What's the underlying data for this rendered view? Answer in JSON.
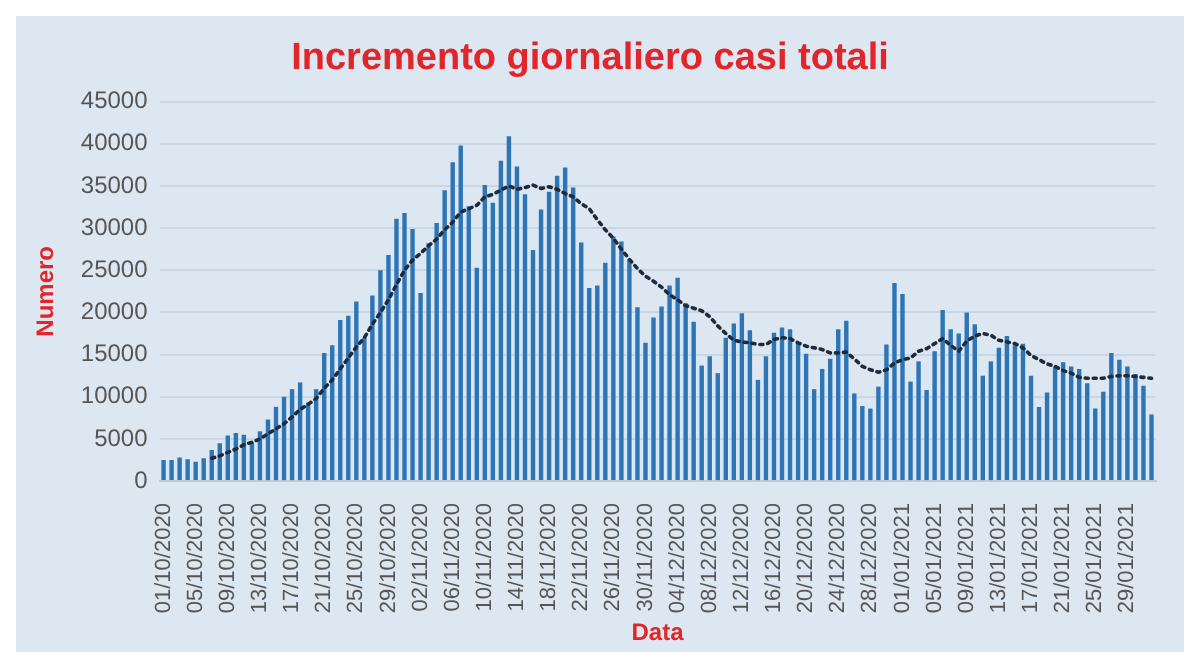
{
  "chart_data": {
    "type": "bar",
    "title": "Incremento giornaliero casi totali",
    "xlabel": "Data",
    "ylabel": "Numero",
    "categories": [
      "01/10/2020",
      null,
      null,
      null,
      "05/10/2020",
      null,
      null,
      null,
      "09/10/2020",
      null,
      null,
      null,
      "13/10/2020",
      null,
      null,
      null,
      "17/10/2020",
      null,
      null,
      null,
      "21/10/2020",
      null,
      null,
      null,
      "25/10/2020",
      null,
      null,
      null,
      "29/10/2020",
      null,
      null,
      null,
      "02/11/2020",
      null,
      null,
      null,
      "06/11/2020",
      null,
      null,
      null,
      "10/11/2020",
      null,
      null,
      null,
      "14/11/2020",
      null,
      null,
      null,
      "18/11/2020",
      null,
      null,
      null,
      "22/11/2020",
      null,
      null,
      null,
      "26/11/2020",
      null,
      null,
      null,
      "30/11/2020",
      null,
      null,
      null,
      "04/12/2020",
      null,
      null,
      null,
      "08/12/2020",
      null,
      null,
      null,
      "12/12/2020",
      null,
      null,
      null,
      "16/12/2020",
      null,
      null,
      null,
      "20/12/2020",
      null,
      null,
      null,
      "24/12/2020",
      null,
      null,
      null,
      "28/12/2020",
      null,
      null,
      null,
      "01/01/2021",
      null,
      null,
      null,
      "05/01/2021",
      null,
      null,
      null,
      "09/01/2021",
      null,
      null,
      null,
      "13/01/2021",
      null,
      null,
      null,
      "17/01/2021",
      null,
      null,
      null,
      "21/01/2021",
      null,
      null,
      null,
      "25/01/2021",
      null,
      null,
      null,
      "29/01/2021",
      null,
      null,
      null
    ],
    "series": [
      {
        "color": "#2e75b6",
        "values": [
          2500,
          2500,
          2800,
          2600,
          2300,
          2700,
          3700,
          4500,
          5400,
          5700,
          5500,
          4600,
          5900,
          7300,
          8800,
          10000,
          10900,
          11700,
          9300,
          10900,
          15200,
          16100,
          19100,
          19600,
          21300,
          17000,
          22000,
          25000,
          26800,
          31100,
          31800,
          29900,
          22300,
          28200,
          30600,
          34500,
          37800,
          39800,
          32600,
          25300,
          35100,
          33000,
          38000,
          40900,
          37300,
          34000,
          27400,
          32200,
          34300,
          36200,
          37200,
          34800,
          28300,
          22900,
          23200,
          25900,
          29000,
          28400,
          26300,
          20600,
          16400,
          19400,
          20700,
          23200,
          24100,
          21100,
          18900,
          13700,
          14800,
          12800,
          17000,
          18700,
          19900,
          17900,
          12000,
          14800,
          17600,
          18200,
          18000,
          16300,
          15100,
          10900,
          13300,
          14500,
          18000,
          19000,
          10400,
          8900,
          8600,
          11200,
          16200,
          23500,
          22200,
          11800,
          14200,
          10800,
          15400,
          20300,
          18000,
          17500,
          20000,
          18600,
          12500,
          14200,
          15800,
          17200,
          16100,
          16300,
          12500,
          8800,
          10500,
          13600,
          14100,
          13600,
          13300,
          11600,
          8600,
          10600,
          15200,
          14400,
          13600,
          12700,
          11300,
          7900
        ]
      },
      {
        "type": "line",
        "color": "#1f2a3a",
        "line_style": "dotted",
        "marker": "none",
        "values": [
          null,
          null,
          null,
          null,
          null,
          null,
          2700,
          3000,
          3400,
          3800,
          4300,
          4600,
          5000,
          5600,
          6200,
          6800,
          7600,
          8500,
          9100,
          9800,
          11000,
          12000,
          13300,
          14600,
          15900,
          17000,
          18600,
          20000,
          21500,
          23300,
          25000,
          26200,
          27000,
          27900,
          28700,
          29800,
          30700,
          31900,
          32300,
          32700,
          33700,
          34000,
          34500,
          35000,
          34600,
          34800,
          35100,
          34700,
          34900,
          34600,
          34100,
          33700,
          32900,
          32300,
          31000,
          29800,
          28800,
          27500,
          26300,
          25200,
          24300,
          23700,
          23000,
          22100,
          21500,
          20800,
          20500,
          20200,
          19500,
          18400,
          17500,
          16700,
          16500,
          16400,
          16200,
          16200,
          16800,
          17000,
          16900,
          16400,
          16000,
          15800,
          15600,
          15200,
          15200,
          15300,
          14500,
          13600,
          13200,
          12900,
          13200,
          14000,
          14400,
          14600,
          15400,
          15700,
          16300,
          16900,
          16100,
          15400,
          16600,
          17200,
          17500,
          17300,
          16700,
          16500,
          16300,
          15800,
          14900,
          14400,
          13900,
          13600,
          13100,
          12800,
          12300,
          12200,
          12200,
          12200,
          12400,
          12500,
          12500,
          12400,
          12300,
          12200
        ]
      }
    ],
    "ylim": [
      0,
      45000
    ],
    "yticks": [
      0,
      5000,
      10000,
      15000,
      20000,
      25000,
      30000,
      35000,
      40000,
      45000
    ],
    "grid": "y",
    "legend": false
  }
}
